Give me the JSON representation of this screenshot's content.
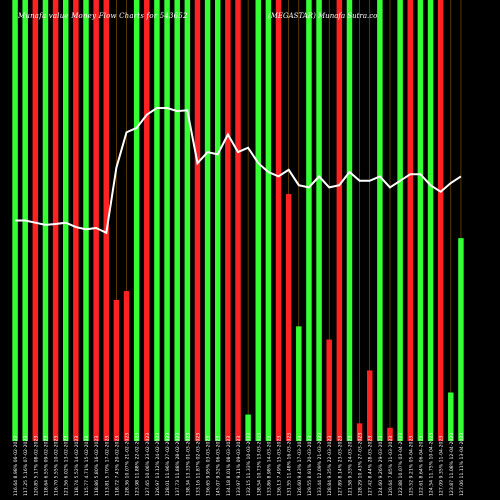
{
  "header": {
    "title_left": "Munafa value Money Flow Charts for 543652",
    "title_right": "(MEGASTAR) Munafa Sutra.co"
  },
  "chart_data": {
    "type": "bar",
    "title": "Munafa value Money Flow Charts for 543652 (MEGASTAR) Munafa Sutra.co",
    "ylim": [
      0,
      100
    ],
    "colors": {
      "up": "#33ff33",
      "down": "#ff2222",
      "line": "#ffffff",
      "grid": "#cc8800",
      "background": "#000000"
    },
    "categories": [
      "116.64 8.98% 06-02-2023",
      "117.25 5.16% 07-02-2023",
      "120.85 5.17% 08-02-2023",
      "118.64 6.55% 09-02-2023",
      "116.70 5.55% 10-02-2023",
      "121.56 6.02% 13-02-2023",
      "118.74 5.52% 14-02-2023",
      "115.77 4.71% 15-02-2023",
      "118.86 5.80% 16-02-2023",
      "113.81 5.70% 17-02-2023",
      "118.72 7.43% 20-02-2023",
      "128.36 10.07% 21-02-2023",
      "123.98 11.88% 22-02-2023",
      "127.65 10.06% 23-02-2023",
      "126.97 13.12% 24-02-2023",
      "128.01 11.96% 27-02-2023",
      "137.73 11.88% 28-02-2023",
      "138.34 13.33% 01-03-2023",
      "133.16 11.87% 02-03-2023",
      "136.65 9.95% 03-03-2023",
      "145.07 9.52% 06-03-2023",
      "134.18 8.01% 08-03-2023",
      "133.97 9.11% 09-03-2023",
      "132.15 11.33% 10-03-2023",
      "138.54 10.73% 13-03-2023",
      "133.86 8.98% 14-03-2023",
      "136.13 7.49% 15-03-2023",
      "131.55 11.48% 16-03-2023",
      "126.60 9.43% 17-03-2023",
      "129.55 8.91% 20-03-2023",
      "133.44 12.09% 21-03-2023",
      "128.84 9.35% 22-03-2023",
      "127.89 8.14% 23-03-2023",
      "121.58 9.33% 24-03-2023",
      "128.29 10.43% 27-03-2023",
      "127.42 8.44% 28-03-2023",
      "124.60 9.26% 29-03-2023",
      "120.64 7.85% 31-03-2023",
      "122.88 10.07% 03-04-2023",
      "125.52 9.21% 05-04-2023",
      "122.61 8.64% 06-04-2023",
      "124.54 11.75% 10-04-2023",
      "127.09 9.35% 11-04-2023",
      "123.87 11.08% 12-04-2023",
      "127.06 11.11% 13-04-2023"
    ],
    "bar_colors": [
      "green",
      "green",
      "red",
      "green",
      "red",
      "green",
      "red",
      "green",
      "red",
      "red",
      "red",
      "red",
      "green",
      "red",
      "green",
      "green",
      "green",
      "green",
      "red",
      "green",
      "green",
      "red",
      "red",
      "green",
      "green",
      "green",
      "red",
      "red",
      "green",
      "green",
      "green",
      "red",
      "red",
      "green",
      "red",
      "red",
      "green",
      "red",
      "green",
      "red",
      "green",
      "green",
      "red",
      "green",
      "green"
    ],
    "values": [
      100,
      100,
      100,
      100,
      100,
      100,
      100,
      100,
      100,
      100,
      32,
      34,
      100,
      100,
      100,
      100,
      100,
      100,
      100,
      100,
      100,
      100,
      100,
      6,
      100,
      100,
      100,
      56,
      26,
      100,
      100,
      23,
      100,
      100,
      4,
      16,
      100,
      3,
      100,
      100,
      100,
      100,
      100,
      11,
      46
    ],
    "line_values": [
      50,
      50,
      49.5,
      49,
      49.2,
      49.5,
      48.5,
      48,
      48.3,
      47.2,
      62,
      70,
      71,
      74,
      75.5,
      75.5,
      74.8,
      75,
      63,
      65.5,
      65,
      69.5,
      65.5,
      66.5,
      63,
      61,
      60,
      61.5,
      58,
      57.5,
      60,
      57.5,
      58,
      61,
      59,
      59,
      60,
      57.5,
      59,
      60.5,
      60.5,
      58,
      56.5,
      58.5,
      60
    ]
  }
}
